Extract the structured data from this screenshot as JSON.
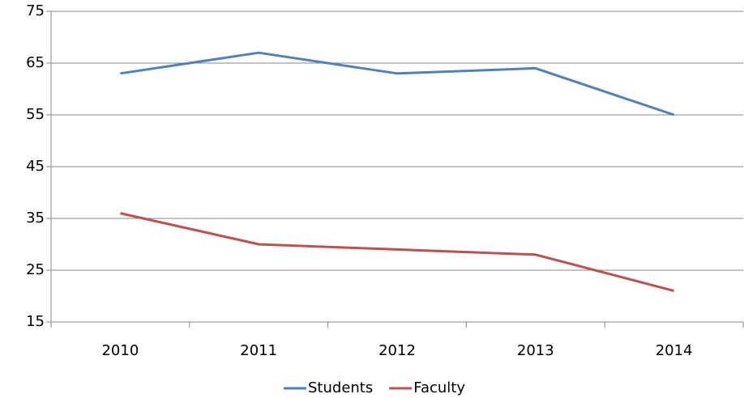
{
  "chart_data": {
    "type": "line",
    "categories": [
      "2010",
      "2011",
      "2012",
      "2013",
      "2014"
    ],
    "series": [
      {
        "name": "Students",
        "color": "#4f81bd",
        "values": [
          63,
          67,
          63,
          64,
          55
        ]
      },
      {
        "name": "Faculty",
        "color": "#c0504d",
        "values": [
          36,
          30,
          29,
          28,
          21
        ]
      }
    ],
    "ylim": [
      15,
      75
    ],
    "yticks": [
      15,
      25,
      35,
      45,
      55,
      65,
      75
    ],
    "grid": true,
    "legend": "bottom"
  }
}
